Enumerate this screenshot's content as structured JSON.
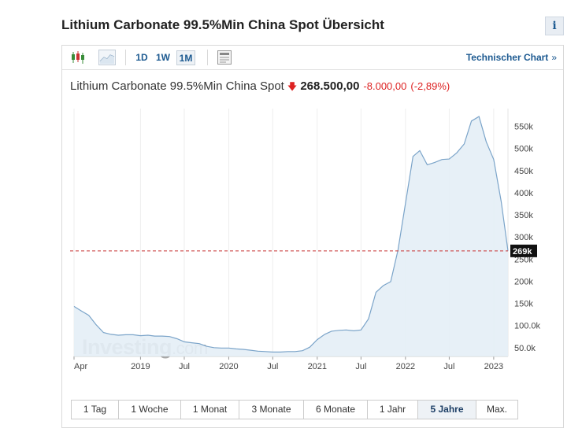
{
  "page": {
    "title": "Lithium Carbonate 99.5%Min China Spot Übersicht",
    "info_label": "i"
  },
  "toolbar": {
    "periods": [
      "1D",
      "1W",
      "1M"
    ],
    "active_period": "1M",
    "tech_link": "Technischer Chart",
    "tech_chevron": "»",
    "icons": [
      "candlestick-icon",
      "area-chart-icon",
      "news-icon"
    ]
  },
  "quote": {
    "name": "Lithium Carbonate 99.5%Min China Spot",
    "price": "268.500,00",
    "change": "-8.000,00",
    "change_pct": "(-2,89%)",
    "direction_glyph": "🡇",
    "down_color": "#dd2222"
  },
  "chart_data": {
    "type": "area",
    "title": "",
    "xlabel": "",
    "ylabel": "",
    "y_axis_position": "right",
    "ylim": [
      30000,
      590000
    ],
    "yticks": [
      50000,
      100000,
      150000,
      200000,
      250000,
      300000,
      350000,
      400000,
      450000,
      500000,
      550000
    ],
    "ytick_labels": [
      "50.0k",
      "100.0k",
      "150k",
      "200k",
      "250k",
      "300k",
      "350k",
      "400k",
      "450k",
      "500k",
      "550k"
    ],
    "xlim": [
      "2018-04-01",
      "2023-03-01"
    ],
    "xticks": [
      "2018-04-01",
      "2019-01-01",
      "2019-07-01",
      "2020-01-01",
      "2020-07-01",
      "2021-01-01",
      "2021-07-01",
      "2022-01-01",
      "2022-07-01",
      "2023-01-01"
    ],
    "xtick_labels": [
      "Apr",
      "2019",
      "Jul",
      "2020",
      "Jul",
      "2021",
      "Jul",
      "2022",
      "Jul",
      "2023"
    ],
    "last_value": 268500,
    "last_value_label": "269k",
    "grid": true,
    "line_color": "#7ba4c9",
    "fill_color": "#e4eef6",
    "reference_line_color": "#c83232",
    "series": [
      {
        "values": [
          [
            "2018-04-01",
            143000
          ],
          [
            "2018-05-01",
            133000
          ],
          [
            "2018-06-01",
            123000
          ],
          [
            "2018-07-01",
            102000
          ],
          [
            "2018-08-01",
            84000
          ],
          [
            "2018-09-01",
            80000
          ],
          [
            "2018-10-01",
            78000
          ],
          [
            "2018-11-01",
            79000
          ],
          [
            "2018-12-01",
            79000
          ],
          [
            "2019-01-01",
            77000
          ],
          [
            "2019-02-01",
            78000
          ],
          [
            "2019-03-01",
            76000
          ],
          [
            "2019-04-01",
            76000
          ],
          [
            "2019-05-01",
            75000
          ],
          [
            "2019-06-01",
            70000
          ],
          [
            "2019-07-01",
            63000
          ],
          [
            "2019-08-01",
            61000
          ],
          [
            "2019-09-01",
            59000
          ],
          [
            "2019-10-01",
            53000
          ],
          [
            "2019-11-01",
            50000
          ],
          [
            "2019-12-01",
            49000
          ],
          [
            "2020-01-01",
            49000
          ],
          [
            "2020-02-01",
            47000
          ],
          [
            "2020-03-01",
            46000
          ],
          [
            "2020-04-01",
            44000
          ],
          [
            "2020-05-01",
            42000
          ],
          [
            "2020-06-01",
            41000
          ],
          [
            "2020-07-01",
            40000
          ],
          [
            "2020-08-01",
            40000
          ],
          [
            "2020-09-01",
            41000
          ],
          [
            "2020-10-01",
            41000
          ],
          [
            "2020-11-01",
            43000
          ],
          [
            "2020-12-01",
            51000
          ],
          [
            "2021-01-01",
            68000
          ],
          [
            "2021-02-01",
            80000
          ],
          [
            "2021-03-01",
            87000
          ],
          [
            "2021-04-01",
            89000
          ],
          [
            "2021-05-01",
            90000
          ],
          [
            "2021-06-01",
            88000
          ],
          [
            "2021-07-01",
            90000
          ],
          [
            "2021-08-01",
            115000
          ],
          [
            "2021-09-01",
            175000
          ],
          [
            "2021-10-01",
            190000
          ],
          [
            "2021-11-01",
            199000
          ],
          [
            "2021-12-01",
            270000
          ],
          [
            "2022-01-01",
            375000
          ],
          [
            "2022-02-01",
            482000
          ],
          [
            "2022-03-01",
            495000
          ],
          [
            "2022-04-01",
            463000
          ],
          [
            "2022-05-01",
            468000
          ],
          [
            "2022-06-01",
            475000
          ],
          [
            "2022-07-01",
            476000
          ],
          [
            "2022-08-01",
            490000
          ],
          [
            "2022-09-01",
            510000
          ],
          [
            "2022-10-01",
            562000
          ],
          [
            "2022-11-01",
            572000
          ],
          [
            "2022-12-01",
            515000
          ],
          [
            "2023-01-01",
            475000
          ],
          [
            "2023-02-01",
            380000
          ],
          [
            "2023-03-01",
            268500
          ]
        ]
      }
    ]
  },
  "watermark": {
    "brand": "Investing",
    "suffix": ".com"
  },
  "ranges": [
    "1 Tag",
    "1 Woche",
    "1 Monat",
    "3 Monate",
    "6 Monate",
    "1 Jahr",
    "5 Jahre",
    "Max."
  ],
  "active_range": "5 Jahre"
}
